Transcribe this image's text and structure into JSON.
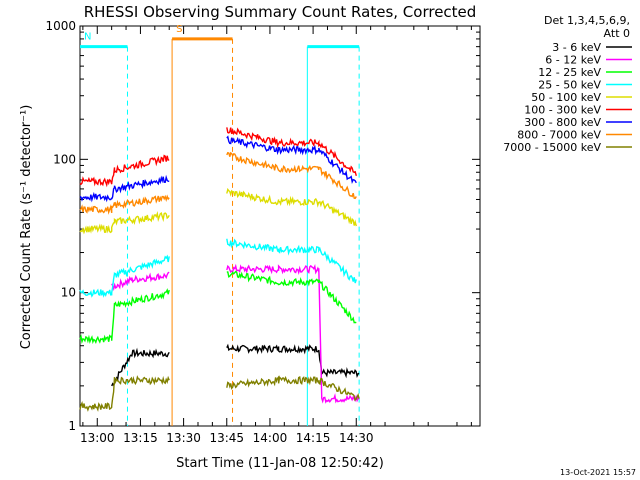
{
  "chart_data": {
    "type": "line",
    "title": "RHESSI Observing Summary Count Rates, Corrected",
    "xlabel": "Start Time (11-Jan-08 12:50:42)",
    "ylabel": "Corrected Count Rate (s⁻¹ detector⁻¹)",
    "ylog": true,
    "ylim": [
      1,
      1000
    ],
    "xlim_minutes": [
      -6,
      133
    ],
    "x_ticks": [
      {
        "m": 0,
        "label": "13:00"
      },
      {
        "m": 15,
        "label": "13:15"
      },
      {
        "m": 30,
        "label": "13:30"
      },
      {
        "m": 45,
        "label": "13:45"
      },
      {
        "m": 60,
        "label": "14:00"
      },
      {
        "m": 75,
        "label": "14:15"
      },
      {
        "m": 90,
        "label": "14:30"
      }
    ],
    "y_ticks": [
      {
        "v": 1,
        "label": "1"
      },
      {
        "v": 10,
        "label": "10"
      },
      {
        "v": 100,
        "label": "100"
      },
      {
        "v": 1000,
        "label": "1000"
      }
    ],
    "legend": {
      "header": [
        "Det 1,3,4,5,6,9,",
        "Att 0"
      ],
      "placement": "right"
    },
    "series": [
      {
        "name": "3 - 6 keV",
        "color": "#000000",
        "seg1": [
          [
            5,
            2
          ],
          [
            12,
            3.5
          ],
          [
            25,
            3.5
          ]
        ],
        "seg2": [
          [
            45,
            3.8
          ],
          [
            63,
            3.8
          ],
          [
            77,
            3.8
          ],
          [
            78,
            2.5
          ],
          [
            91,
            2.5
          ]
        ]
      },
      {
        "name": "6 - 12 keV",
        "color": "#ff00ff",
        "seg1": [
          [
            5,
            11
          ],
          [
            12,
            12.5
          ],
          [
            25,
            13.5
          ]
        ],
        "seg2": [
          [
            45,
            15
          ],
          [
            63,
            15
          ],
          [
            77,
            15
          ],
          [
            78,
            1.6
          ],
          [
            91,
            1.6
          ]
        ]
      },
      {
        "name": "12 - 25 keV",
        "color": "#00ff00",
        "seg1": [
          [
            -6,
            4.5
          ],
          [
            5,
            4.5
          ],
          [
            6,
            8
          ],
          [
            25,
            10
          ]
        ],
        "seg2": [
          [
            45,
            14
          ],
          [
            63,
            12
          ],
          [
            77,
            12
          ],
          [
            90,
            6
          ]
        ]
      },
      {
        "name": "25 - 50 keV",
        "color": "#00ffff",
        "seg1": [
          [
            -6,
            10
          ],
          [
            5,
            10
          ],
          [
            6,
            13.5
          ],
          [
            25,
            18
          ]
        ],
        "seg2": [
          [
            45,
            24
          ],
          [
            63,
            21
          ],
          [
            77,
            21
          ],
          [
            90,
            12
          ]
        ]
      },
      {
        "name": "50 - 100 keV",
        "color": "#dddd00",
        "seg1": [
          [
            -6,
            30
          ],
          [
            5,
            30
          ],
          [
            6,
            34
          ],
          [
            25,
            38
          ]
        ],
        "seg2": [
          [
            45,
            57
          ],
          [
            63,
            48
          ],
          [
            77,
            48
          ],
          [
            90,
            33
          ]
        ]
      },
      {
        "name": "100 - 300 keV",
        "color": "#ff0000",
        "seg1": [
          [
            -6,
            68
          ],
          [
            5,
            68
          ],
          [
            6,
            83
          ],
          [
            25,
            103
          ]
        ],
        "seg2": [
          [
            45,
            168
          ],
          [
            63,
            133
          ],
          [
            77,
            133
          ],
          [
            90,
            77
          ]
        ]
      },
      {
        "name": "300 - 800 keV",
        "color": "#0000ff",
        "seg1": [
          [
            -6,
            52
          ],
          [
            5,
            52
          ],
          [
            6,
            60
          ],
          [
            25,
            72
          ]
        ],
        "seg2": [
          [
            45,
            140
          ],
          [
            63,
            118
          ],
          [
            77,
            118
          ],
          [
            90,
            65
          ]
        ]
      },
      {
        "name": "800 - 7000 keV",
        "color": "#ff8800",
        "seg1": [
          [
            -6,
            42
          ],
          [
            5,
            42
          ],
          [
            6,
            45
          ],
          [
            25,
            52
          ]
        ],
        "seg2": [
          [
            45,
            108
          ],
          [
            63,
            85
          ],
          [
            77,
            85
          ],
          [
            90,
            52
          ]
        ]
      },
      {
        "name": "7000 - 15000 keV",
        "color": "#808000",
        "seg1": [
          [
            -6,
            1.4
          ],
          [
            5,
            1.4
          ],
          [
            6,
            2.2
          ],
          [
            25,
            2.2
          ]
        ],
        "seg2": [
          [
            45,
            2
          ],
          [
            63,
            2.2
          ],
          [
            77,
            2.2
          ],
          [
            91,
            1.6
          ]
        ]
      }
    ],
    "intervals": [
      {
        "label": "N",
        "color": "#00ffff",
        "flag_y": 700,
        "start": -6,
        "end": 10.5
      },
      {
        "label": "S",
        "color": "#ff8800",
        "flag_y": 800,
        "start": 26,
        "end": 47
      },
      {
        "label": "",
        "color": "#00ffff",
        "flag_y": 700,
        "start": 73,
        "end": 91
      }
    ],
    "gap": {
      "start": 26,
      "end": 44
    }
  },
  "footer": {
    "date": "13-Oct-2021 15:57"
  }
}
